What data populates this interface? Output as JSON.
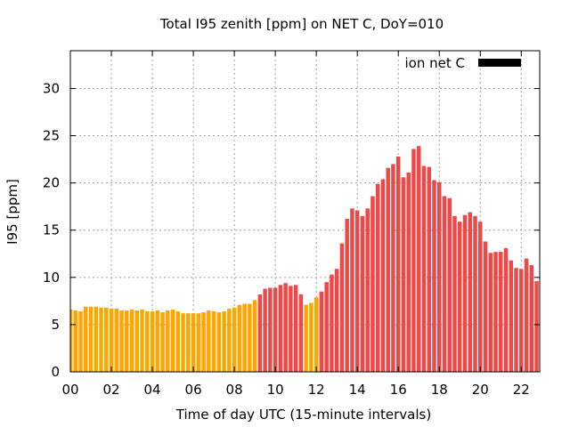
{
  "chart_data": {
    "type": "bar",
    "title": "Total I95 zenith [ppm] on NET C, DoY=010",
    "xlabel": "Time of day UTC (15-minute intervals)",
    "ylabel": "I95 [ppm]",
    "xlim": [
      0,
      22.9
    ],
    "ylim": [
      0,
      34
    ],
    "x_ticks": [
      0,
      2,
      4,
      6,
      8,
      10,
      12,
      14,
      16,
      18,
      20,
      22
    ],
    "x_tick_labels": [
      "00",
      "02",
      "04",
      "06",
      "08",
      "10",
      "12",
      "14",
      "16",
      "18",
      "20",
      "22"
    ],
    "y_ticks": [
      0,
      5,
      10,
      15,
      20,
      25,
      30
    ],
    "y_tick_labels": [
      "0",
      "5",
      "10",
      "15",
      "20",
      "25",
      "30"
    ],
    "grid": true,
    "legend": {
      "position": "top-right",
      "entries": [
        {
          "label": "ion net C",
          "color": "#000000"
        }
      ]
    },
    "colors": {
      "normal": "#ffa500",
      "high": "#ef4848"
    },
    "interval_hours": 0.25,
    "series": [
      {
        "name": "ion net C",
        "values": [
          6.6,
          6.5,
          6.4,
          6.9,
          6.9,
          6.9,
          6.8,
          6.8,
          6.7,
          6.7,
          6.5,
          6.5,
          6.6,
          6.5,
          6.6,
          6.4,
          6.4,
          6.5,
          6.3,
          6.5,
          6.6,
          6.4,
          6.2,
          6.2,
          6.2,
          6.2,
          6.3,
          6.5,
          6.4,
          6.3,
          6.4,
          6.7,
          6.8,
          7.1,
          7.2,
          7.2,
          7.6,
          8.2,
          8.8,
          8.9,
          8.9,
          9.2,
          9.4,
          9.1,
          9.2,
          8.2,
          7.1,
          7.3,
          7.9,
          8.5,
          9.5,
          10.3,
          10.9,
          13.6,
          16.2,
          17.3,
          17.1,
          16.5,
          17.3,
          18.6,
          19.9,
          20.4,
          21.6,
          22.0,
          22.8,
          20.6,
          21.1,
          23.6,
          23.9,
          21.8,
          21.7,
          20.3,
          20.1,
          18.6,
          18.4,
          16.5,
          15.9,
          16.6,
          16.9,
          16.5,
          15.9,
          13.8,
          12.6,
          12.7,
          12.7,
          13.1,
          11.8,
          11.0,
          10.9,
          12.0,
          11.3,
          9.6,
          9.7
        ],
        "categories_color": [
          "normal",
          "normal",
          "normal",
          "normal",
          "normal",
          "normal",
          "normal",
          "normal",
          "normal",
          "normal",
          "normal",
          "normal",
          "normal",
          "normal",
          "normal",
          "normal",
          "normal",
          "normal",
          "normal",
          "normal",
          "normal",
          "normal",
          "normal",
          "normal",
          "normal",
          "normal",
          "normal",
          "normal",
          "normal",
          "normal",
          "normal",
          "normal",
          "normal",
          "normal",
          "normal",
          "normal",
          "normal",
          "high",
          "high",
          "high",
          "high",
          "high",
          "high",
          "high",
          "high",
          "high",
          "normal",
          "normal",
          "normal",
          "high",
          "high",
          "high",
          "high",
          "high",
          "high",
          "high",
          "high",
          "high",
          "high",
          "high",
          "high",
          "high",
          "high",
          "high",
          "high",
          "high",
          "high",
          "high",
          "high",
          "high",
          "high",
          "high",
          "high",
          "high",
          "high",
          "high",
          "high",
          "high",
          "high",
          "high",
          "high",
          "high",
          "high",
          "high",
          "high",
          "high",
          "high",
          "high",
          "high",
          "high",
          "high",
          "high",
          "high"
        ]
      }
    ]
  }
}
